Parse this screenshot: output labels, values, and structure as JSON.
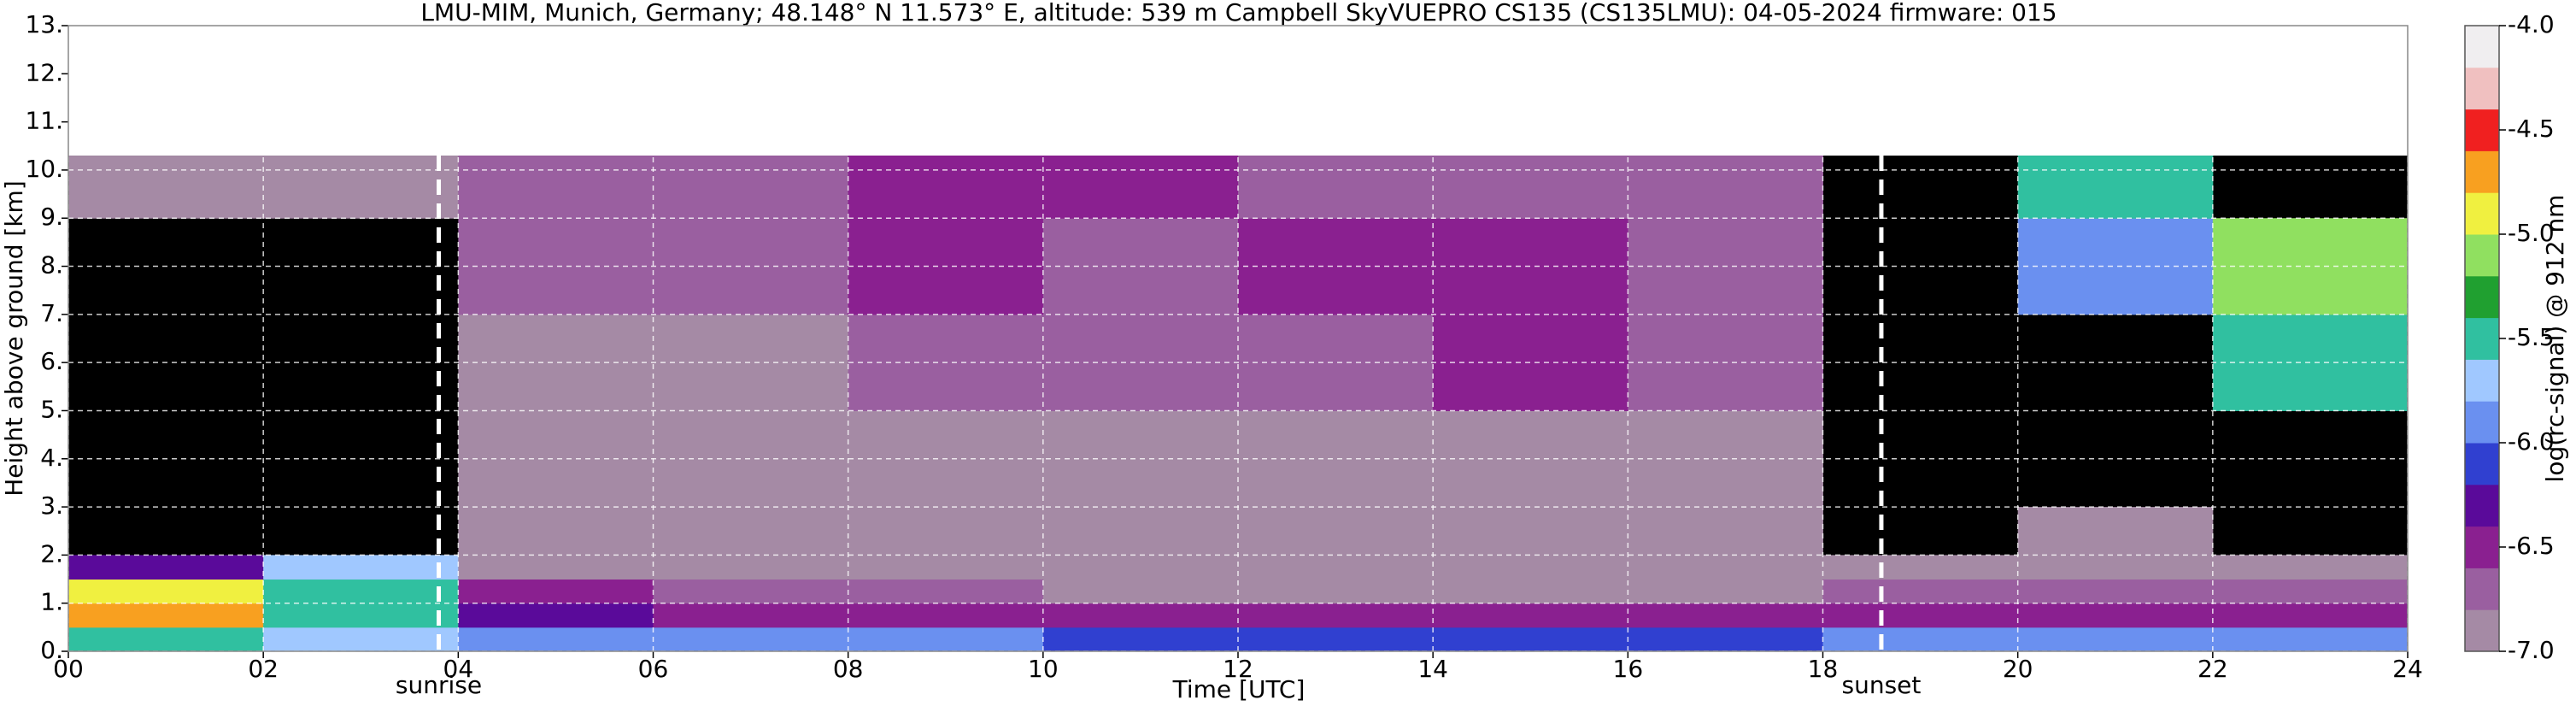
{
  "chart_data": {
    "type": "heatmap",
    "title": "LMU-MIM, Munich, Germany; 48.148° N 11.573° E, altitude: 539 m    Campbell SkyVUEPRO CS135 (CS135LMU): 04-05-2024    firmware: 015",
    "x_label": "Time [UTC]",
    "y_label": "Height above ground [km]",
    "xlim": [
      0,
      24
    ],
    "xticks": [
      {
        "value": 0,
        "label": "00"
      },
      {
        "value": 2,
        "label": "02"
      },
      {
        "value": 4,
        "label": "04"
      },
      {
        "value": 6,
        "label": "06"
      },
      {
        "value": 8,
        "label": "08"
      },
      10,
      12,
      14,
      16,
      18,
      20,
      22,
      24
    ],
    "ylim": [
      0,
      13
    ],
    "yticks": [
      {
        "value": 0,
        "label": "0."
      },
      {
        "value": 1,
        "label": "1."
      },
      {
        "value": 2,
        "label": "2."
      },
      {
        "value": 3,
        "label": "3."
      },
      {
        "value": 4,
        "label": "4."
      },
      {
        "value": 5,
        "label": "5."
      },
      {
        "value": 6,
        "label": "6."
      },
      {
        "value": 7,
        "label": "7."
      },
      {
        "value": 8,
        "label": "8."
      },
      {
        "value": 9,
        "label": "9."
      },
      {
        "value": 10,
        "label": "10."
      },
      {
        "value": 11,
        "label": "11."
      },
      {
        "value": 12,
        "label": "12."
      },
      {
        "value": 13,
        "label": "13."
      }
    ],
    "grid": true,
    "xbins": [
      0,
      2,
      4,
      6,
      8,
      10,
      12,
      14,
      16,
      18,
      20,
      22,
      24
    ],
    "ybins": [
      0,
      0.5,
      1,
      1.5,
      2,
      3,
      5,
      7,
      9,
      10.3
    ],
    "z": [
      [
        -5.6,
        -5.8,
        -6.0,
        -6.0,
        -6.0,
        -6.1,
        -6.1,
        -6.1,
        -6.1,
        -6.0,
        -6.0,
        -6.0
      ],
      [
        -4.7,
        -5.5,
        -6.3,
        -6.4,
        -6.4,
        -6.5,
        -6.6,
        -6.6,
        -6.6,
        -6.6,
        -6.6,
        -6.6
      ],
      [
        -5.0,
        -5.6,
        -6.6,
        -6.8,
        -6.8,
        -6.9,
        -6.9,
        -6.9,
        -6.9,
        -6.8,
        -6.8,
        -6.8
      ],
      [
        -6.2,
        -5.8,
        -6.9,
        -6.9,
        -6.9,
        -6.9,
        -6.9,
        -6.9,
        -6.9,
        -6.9,
        -6.9,
        -6.9
      ],
      [
        null,
        null,
        -6.9,
        -6.9,
        -6.9,
        -6.9,
        -6.9,
        -6.9,
        -6.9,
        null,
        -6.9,
        null
      ],
      [
        null,
        null,
        -6.9,
        -6.9,
        -6.9,
        -6.9,
        -6.9,
        -6.9,
        -6.9,
        null,
        null,
        null
      ],
      [
        null,
        null,
        -6.9,
        -6.9,
        -6.8,
        -6.8,
        -6.8,
        -6.6,
        -6.8,
        null,
        null,
        -5.6
      ],
      [
        null,
        null,
        -6.8,
        -6.8,
        -6.6,
        -6.7,
        -6.6,
        -6.6,
        -6.8,
        null,
        -6.0,
        -5.2
      ],
      [
        -6.9,
        -6.9,
        -6.8,
        -6.8,
        -6.6,
        -6.6,
        -6.7,
        -6.7,
        -6.8,
        null,
        -5.4,
        null
      ]
    ],
    "annotations": [
      {
        "text": "sunrise",
        "x": 3.8
      },
      {
        "text": "sunset",
        "x": 18.6
      }
    ],
    "colorbar": {
      "label": "log(rc-signal) @ 912 nm",
      "lim": [
        -7,
        -4
      ],
      "ticks": [
        {
          "value": -7,
          "label": "-7.0"
        },
        {
          "value": -6.5,
          "label": "-6.5"
        },
        {
          "value": -6,
          "label": "-6.0"
        },
        {
          "value": -5.5,
          "label": "-5.5"
        },
        {
          "value": -5,
          "label": "-5.0"
        },
        {
          "value": -4.5,
          "label": "-4.5"
        },
        {
          "value": -4,
          "label": "-4.0"
        }
      ],
      "colors": [
        "#a58aa5",
        "#9a5fa0",
        "#8a2090",
        "#5a0a9a",
        "#3040d0",
        "#6a90f0",
        "#a0c8ff",
        "#30c0a0",
        "#20a030",
        "#90e060",
        "#f0f040",
        "#f8a020",
        "#f02020",
        "#f0c0c0",
        "#f0eef0"
      ]
    }
  }
}
